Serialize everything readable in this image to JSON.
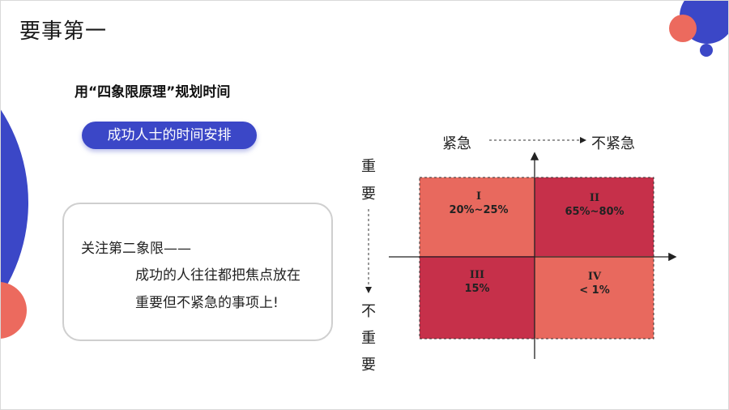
{
  "slide": {
    "title": "要事第一",
    "subtitle": "用“四象限原理”规划时间",
    "pill_label": "成功人士的时间安排",
    "note": {
      "line1": "关注第二象限——",
      "line2": "成功的人往往都把焦点放在",
      "line3": "重要但不紧急的事项上!"
    }
  },
  "matrix": {
    "x_left_label": "紧急",
    "x_right_label": "不紧急",
    "y_top_label": [
      "重",
      "要"
    ],
    "y_bottom_label": [
      "不",
      "重",
      "要"
    ],
    "quadrants": [
      {
        "id": "q1",
        "numeral": "I",
        "value": "20%~25%",
        "color": "#e8695e"
      },
      {
        "id": "q2",
        "numeral": "II",
        "value": "65%~80%",
        "color": "#c6304a"
      },
      {
        "id": "q3",
        "numeral": "III",
        "value": "15%",
        "color": "#c6304a"
      },
      {
        "id": "q4",
        "numeral": "IV",
        "value": "< 1%",
        "color": "#e8695e"
      }
    ]
  },
  "colors": {
    "accent_blue": "#3b47c7",
    "accent_coral": "#ec6a5e"
  }
}
